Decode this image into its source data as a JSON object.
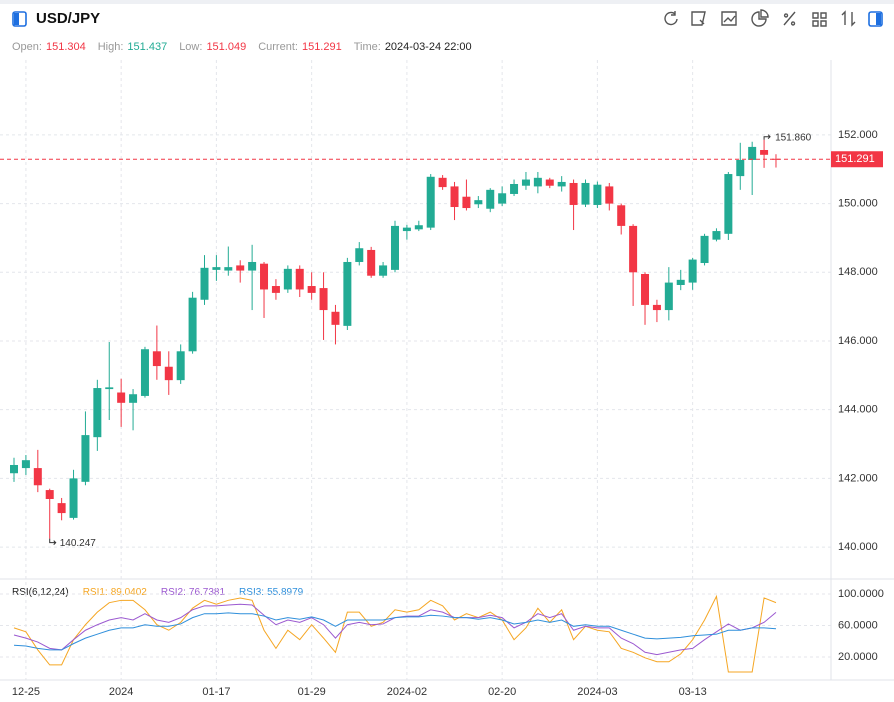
{
  "chart_data": {
    "type": "candlestick",
    "title": "USD/JPY",
    "info": [
      {
        "label": "Open:",
        "value": 151.304,
        "color": "#f23645"
      },
      {
        "label": "High:",
        "value": 151.437,
        "color": "#22ab94"
      },
      {
        "label": "Low:",
        "value": 151.049,
        "color": "#f23645"
      },
      {
        "label": "Current:",
        "value": 151.291,
        "color": "#f23645"
      },
      {
        "label": "Time:",
        "value": "2024-03-24 22:00",
        "color": "#222222"
      }
    ],
    "categories": [
      null,
      "12-25",
      null,
      null,
      null,
      null,
      null,
      null,
      null,
      "2024",
      null,
      null,
      null,
      null,
      null,
      null,
      null,
      "01-17",
      null,
      null,
      null,
      null,
      null,
      null,
      null,
      "01-29",
      null,
      null,
      null,
      null,
      null,
      null,
      null,
      "2024-02",
      null,
      null,
      null,
      null,
      null,
      null,
      null,
      "02-20",
      null,
      null,
      null,
      null,
      null,
      null,
      null,
      "2024-03",
      null,
      null,
      null,
      null,
      null,
      null,
      null,
      "03-13",
      null,
      null,
      null,
      null,
      null,
      null,
      null
    ],
    "open": [
      142.15,
      142.3,
      142.3,
      141.66,
      141.28,
      140.85,
      141.9,
      143.2,
      144.6,
      144.5,
      144.2,
      144.4,
      145.7,
      145.25,
      144.86,
      145.7,
      147.2,
      148.07,
      148.05,
      148.2,
      148.05,
      148.25,
      147.6,
      147.5,
      148.1,
      147.6,
      147.54,
      146.85,
      146.44,
      148.3,
      148.65,
      147.9,
      148.07,
      149.2,
      149.25,
      149.3,
      150.75,
      150.5,
      150.2,
      149.98,
      149.85,
      150.0,
      150.28,
      150.52,
      150.5,
      150.7,
      150.5,
      150.6,
      149.97,
      149.96,
      150.5,
      149.95,
      149.35,
      147.95,
      147.05,
      146.9,
      147.63,
      147.7,
      148.27,
      148.95,
      149.12,
      150.8,
      151.27,
      151.56,
      151.304
    ],
    "high": [
      142.6,
      142.68,
      142.83,
      141.7,
      141.43,
      142.25,
      143.95,
      144.87,
      145.97,
      144.9,
      144.6,
      145.83,
      146.45,
      145.7,
      145.9,
      147.43,
      148.5,
      148.5,
      148.75,
      148.35,
      148.8,
      148.3,
      147.8,
      148.2,
      148.2,
      148.0,
      148.0,
      147.05,
      148.42,
      148.88,
      148.74,
      148.3,
      149.5,
      149.38,
      149.5,
      150.86,
      150.83,
      150.63,
      150.7,
      150.22,
      150.45,
      150.5,
      150.7,
      150.92,
      150.92,
      150.75,
      150.8,
      150.7,
      150.7,
      150.64,
      150.6,
      150.0,
      149.4,
      148.0,
      147.2,
      148.15,
      148.07,
      148.42,
      149.12,
      149.28,
      150.92,
      151.77,
      151.8,
      151.86,
      151.437
    ],
    "low": [
      141.9,
      142.1,
      141.6,
      140.247,
      140.78,
      140.8,
      141.8,
      142.8,
      143.7,
      143.5,
      143.4,
      144.35,
      144.87,
      144.43,
      144.75,
      145.63,
      147.05,
      147.75,
      147.9,
      147.7,
      146.9,
      146.67,
      147.2,
      147.4,
      147.28,
      147.2,
      146.03,
      145.9,
      146.32,
      148.2,
      147.84,
      147.84,
      148.0,
      148.95,
      149.2,
      149.23,
      150.4,
      149.52,
      149.8,
      149.87,
      149.75,
      149.93,
      150.22,
      150.4,
      150.3,
      150.45,
      150.35,
      149.23,
      149.9,
      149.87,
      149.8,
      149.1,
      147.02,
      146.47,
      146.55,
      146.6,
      147.48,
      147.49,
      148.2,
      148.9,
      148.94,
      150.4,
      150.25,
      151.04,
      151.049
    ],
    "close": [
      142.39,
      142.53,
      141.8,
      141.4,
      140.99,
      142.0,
      143.26,
      144.63,
      144.65,
      144.2,
      144.45,
      145.76,
      145.27,
      144.86,
      145.7,
      147.26,
      148.13,
      148.15,
      148.15,
      148.05,
      148.3,
      147.5,
      147.4,
      148.1,
      147.5,
      147.4,
      146.9,
      146.47,
      148.3,
      148.7,
      147.9,
      148.2,
      149.35,
      149.3,
      149.37,
      150.78,
      150.48,
      149.9,
      149.87,
      150.1,
      150.4,
      150.3,
      150.57,
      150.7,
      150.75,
      150.52,
      150.63,
      149.96,
      150.6,
      150.55,
      150.0,
      149.35,
      148.0,
      147.05,
      146.9,
      147.7,
      147.78,
      148.37,
      149.06,
      149.2,
      150.86,
      151.27,
      151.65,
      151.42,
      151.291
    ],
    "up_color": "#22ab94",
    "down_color": "#f23645",
    "ylim": [
      139.1,
      154.18
    ],
    "yticks": [
      {
        "value": 140,
        "label": "140.000"
      },
      {
        "value": 142,
        "label": "142.000"
      },
      {
        "value": 144,
        "label": "144.000"
      },
      {
        "value": 146,
        "label": "146.000"
      },
      {
        "value": 148,
        "label": "148.000"
      },
      {
        "value": 150,
        "label": "150.000"
      },
      {
        "value": 152,
        "label": "152.000"
      }
    ],
    "grid": true,
    "extremes": {
      "high": {
        "value": 151.86,
        "label": "151.860"
      },
      "low": {
        "value": 140.247,
        "label": "140.247"
      }
    },
    "indicator": {
      "title": "RSI(6,12,24)",
      "ylim": [
        -9.2,
        117.8
      ],
      "yticks": [
        {
          "value": 20,
          "label": "20.0000"
        },
        {
          "value": 60,
          "label": "60.0000"
        },
        {
          "value": 100,
          "label": "100.0000"
        }
      ],
      "series": [
        {
          "name": "RSI1:",
          "color": "#f5a623",
          "values": [
            57,
            52,
            29,
            10,
            10,
            42,
            61,
            77,
            89,
            92,
            92,
            80,
            61,
            54,
            64,
            82,
            92,
            87,
            92,
            95,
            92,
            54,
            31,
            54,
            42,
            61,
            44,
            26,
            77,
            77,
            59,
            64,
            80,
            77,
            80,
            92,
            85,
            67,
            75,
            70,
            77,
            67,
            42,
            57,
            82,
            64,
            80,
            42,
            59,
            54,
            52,
            31,
            26,
            19,
            14,
            14,
            24,
            42,
            67,
            97,
            1,
            1,
            1,
            95,
            89.0402
          ]
        },
        {
          "name": "RSI2:",
          "color": "#9b59d0",
          "values": [
            48,
            44,
            39,
            31,
            29,
            42,
            54,
            61,
            67,
            70,
            67,
            75,
            67,
            64,
            70,
            80,
            85,
            85,
            86,
            87,
            86,
            73,
            61,
            67,
            64,
            70,
            61,
            44,
            61,
            64,
            61,
            62,
            70,
            72,
            72,
            80,
            77,
            70,
            70,
            70,
            73,
            70,
            57,
            64,
            75,
            70,
            75,
            54,
            59,
            57,
            57,
            44,
            37,
            26,
            23,
            26,
            29,
            31,
            42,
            52,
            62,
            54,
            57,
            64,
            76.7381
          ]
        },
        {
          "name": "RSI3:",
          "color": "#2f8fdb",
          "values": [
            35,
            34,
            31,
            29,
            29,
            37,
            44,
            49,
            54,
            57,
            57,
            61,
            59,
            59,
            62,
            70,
            75,
            75,
            76,
            75,
            75,
            72,
            67,
            70,
            68,
            71,
            67,
            59,
            67,
            67,
            67,
            67,
            70,
            71,
            71,
            73,
            72,
            70,
            70,
            68,
            70,
            67,
            62,
            64,
            67,
            64,
            67,
            59,
            61,
            59,
            59,
            54,
            49,
            44,
            43,
            44,
            45,
            47,
            48,
            49,
            54,
            54,
            57,
            57,
            55.8979
          ]
        }
      ]
    }
  }
}
